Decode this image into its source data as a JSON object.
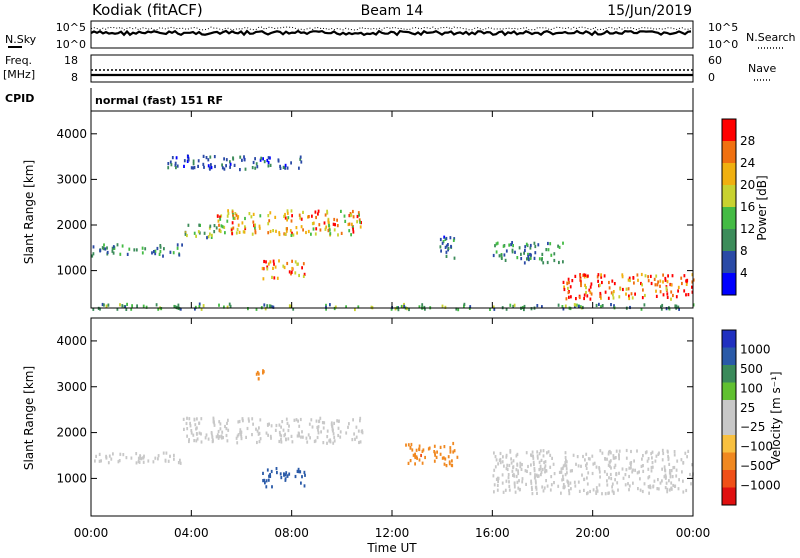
{
  "header": {
    "site": "Kodiak (fitACF)",
    "beam": "Beam 14",
    "date": "15/Jun/2019"
  },
  "top_panels": {
    "nsky_label": "N.Sky",
    "nsearch_label": "N.Search",
    "noise_tick_top": "10^5",
    "noise_tick_bottom": "10^0",
    "freq_label_1": "Freq.",
    "freq_label_2": "[MHz]",
    "freq_ticks": [
      "18",
      "8"
    ],
    "nave_label": "Nave",
    "nave_ticks": [
      "60",
      "0"
    ],
    "cpid_label": "CPID",
    "cpid_text": "normal (fast) 151 RF"
  },
  "colors": {
    "power_scale": [
      "#0000ff",
      "#2a4aa6",
      "#3c8c5a",
      "#44bb44",
      "#c8d230",
      "#f0b010",
      "#f07010",
      "#ff0000"
    ],
    "velocity_scale": [
      "#e01010",
      "#f05018",
      "#f08820",
      "#f8c040",
      "#c8c8c8",
      "#c8c8c8",
      "#60c030",
      "#3a8a5a",
      "#2a5aa8",
      "#2030c0"
    ]
  },
  "chart_data": [
    {
      "type": "heatmap",
      "title": "",
      "xlabel": "Time UT",
      "ylabel": "Slant Range [km]",
      "xticks": [
        "00:00",
        "04:00",
        "08:00",
        "12:00",
        "16:00",
        "20:00",
        "00:00"
      ],
      "yticks": [
        "1000",
        "2000",
        "3000",
        "4000"
      ],
      "xlim": [
        0,
        24
      ],
      "ylim": [
        180,
        4500
      ],
      "colorbar_label": "Power [dB]",
      "colorbar_ticks": [
        "4",
        "8",
        "12",
        "16",
        "20",
        "24",
        "28"
      ],
      "colorbar_range": [
        0,
        32
      ],
      "features": [
        {
          "t0": 0.0,
          "t1": 3.6,
          "r0": 1350,
          "r1": 1600,
          "value": 10
        },
        {
          "t0": 3.6,
          "t1": 5.0,
          "r0": 1750,
          "r1": 2050,
          "value": 14
        },
        {
          "t0": 5.0,
          "t1": 10.8,
          "r0": 1800,
          "r1": 2350,
          "value": 22
        },
        {
          "t0": 6.8,
          "t1": 8.5,
          "r0": 850,
          "r1": 1250,
          "value": 26
        },
        {
          "t0": 13.8,
          "t1": 14.6,
          "r0": 1300,
          "r1": 1800,
          "value": 8
        },
        {
          "t0": 16.0,
          "t1": 18.8,
          "r0": 1200,
          "r1": 1650,
          "value": 10
        },
        {
          "t0": 18.8,
          "t1": 24.0,
          "r0": 400,
          "r1": 950,
          "value": 27
        },
        {
          "t0": 0.0,
          "t1": 24.0,
          "r0": 180,
          "r1": 300,
          "value": 12
        },
        {
          "t0": 3.0,
          "t1": 8.5,
          "r0": 3250,
          "r1": 3550,
          "value": 6
        }
      ]
    },
    {
      "type": "heatmap",
      "title": "",
      "xlabel": "Time UT",
      "ylabel": "Slant Range [km]",
      "xticks": [
        "00:00",
        "04:00",
        "08:00",
        "12:00",
        "16:00",
        "20:00",
        "00:00"
      ],
      "yticks": [
        "1000",
        "2000",
        "3000",
        "4000"
      ],
      "xlim": [
        0,
        24
      ],
      "ylim": [
        180,
        4500
      ],
      "colorbar_label": "Velocity [m s⁻¹]",
      "colorbar_ticks": [
        "1000",
        "500",
        "100",
        "25",
        "−25",
        "−100",
        "−500",
        "−1000"
      ],
      "features": [
        {
          "t0": 0.0,
          "t1": 3.6,
          "r0": 1350,
          "r1": 1600,
          "value": 0
        },
        {
          "t0": 3.6,
          "t1": 10.8,
          "r0": 1800,
          "r1": 2350,
          "value": 0
        },
        {
          "t0": 6.8,
          "t1": 8.5,
          "r0": 850,
          "r1": 1250,
          "value": 800
        },
        {
          "t0": 12.5,
          "t1": 14.6,
          "r0": 1300,
          "r1": 1800,
          "value": -400
        },
        {
          "t0": 16.0,
          "t1": 24.0,
          "r0": 700,
          "r1": 1650,
          "value": 0
        },
        {
          "t0": 6.5,
          "t1": 7.0,
          "r0": 3200,
          "r1": 3400,
          "value": -300
        }
      ]
    }
  ]
}
